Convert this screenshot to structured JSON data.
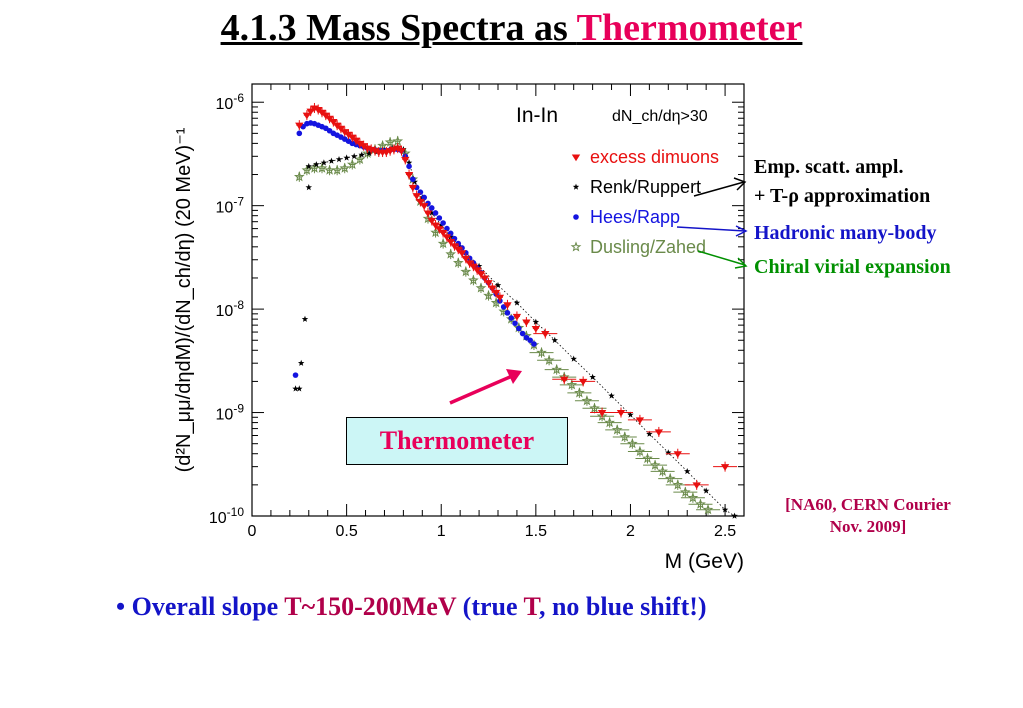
{
  "title": {
    "prefix": "4.1.3 Mass Spectra as ",
    "highlight": "Thermometer"
  },
  "colors": {
    "excess": "#e81010",
    "renk": "#000000",
    "hees": "#1414e0",
    "dusling": "#6a8a4a",
    "accent": "#e8005a",
    "blue_text": "#1414c8",
    "green_text": "#009000"
  },
  "annotations": {
    "emp_line1": "Emp. scatt. ampl.",
    "emp_line2": "+ T-ρ approximation",
    "hadronic": "Hadronic many-body",
    "chiral": "Chiral virial expansion",
    "ref_line1": "[NA60, CERN Courier",
    "ref_line2": "Nov. 2009]",
    "thermometer_box": "Thermometer"
  },
  "bullet": {
    "mark": "•",
    "p1": " Overall slope ",
    "p2": "T~150-200MeV",
    "p3": " (true ",
    "p4": "T",
    "p5": ", no blue shift!)"
  },
  "chart_data": {
    "type": "scatter",
    "title": "In-In",
    "condition": "dN_ch/dη>30",
    "xlabel": "M (GeV)",
    "ylabel": "(d²N_μμ/dηdM)/(dN_ch/dη) (20 MeV)⁻¹",
    "xlim": [
      0,
      2.6
    ],
    "ylim": [
      1e-10,
      1.5e-06
    ],
    "ylog": true,
    "xticks": [
      0,
      0.5,
      1,
      1.5,
      2,
      2.5
    ],
    "xtick_labels": [
      "0",
      "0.5",
      "1",
      "1.5",
      "2",
      "2.5"
    ],
    "ytick_labels": [
      {
        "value": 1e-10,
        "base": "10",
        "exp": "-10"
      },
      {
        "value": 1e-09,
        "base": "10",
        "exp": "-9"
      },
      {
        "value": 1e-08,
        "base": "10",
        "exp": "-8"
      },
      {
        "value": 1e-07,
        "base": "10",
        "exp": "-7"
      },
      {
        "value": 1e-06,
        "base": "10",
        "exp": "-6"
      }
    ],
    "legend_position": "top-right",
    "series": [
      {
        "name": "excess dimuons",
        "marker": "triangle-down",
        "color": "#e81010",
        "errors": true,
        "x": [
          0.25,
          0.29,
          0.31,
          0.33,
          0.35,
          0.37,
          0.39,
          0.41,
          0.43,
          0.45,
          0.47,
          0.49,
          0.51,
          0.53,
          0.55,
          0.57,
          0.59,
          0.61,
          0.63,
          0.65,
          0.67,
          0.69,
          0.71,
          0.73,
          0.75,
          0.77,
          0.79,
          0.81,
          0.83,
          0.85,
          0.87,
          0.89,
          0.91,
          0.93,
          0.95,
          0.97,
          0.99,
          1.01,
          1.03,
          1.05,
          1.07,
          1.09,
          1.11,
          1.13,
          1.15,
          1.17,
          1.19,
          1.21,
          1.23,
          1.25,
          1.27,
          1.29,
          1.31,
          1.35,
          1.4,
          1.45,
          1.5,
          1.55,
          1.65,
          1.75,
          1.85,
          1.95,
          2.05,
          2.15,
          2.25,
          2.35,
          2.5
        ],
        "y": [
          6e-07,
          7.5e-07,
          8.2e-07,
          8.8e-07,
          8.5e-07,
          8e-07,
          7.5e-07,
          7e-07,
          6.5e-07,
          6e-07,
          5.6e-07,
          5.2e-07,
          4.9e-07,
          4.6e-07,
          4.3e-07,
          4e-07,
          3.8e-07,
          3.6e-07,
          3.5e-07,
          3.4e-07,
          3.3e-07,
          3.3e-07,
          3.3e-07,
          3.4e-07,
          3.5e-07,
          3.6e-07,
          3.4e-07,
          2.8e-07,
          2e-07,
          1.5e-07,
          1.25e-07,
          1.1e-07,
          1e-07,
          8.5e-08,
          7.2e-08,
          6.5e-08,
          6e-08,
          5.5e-08,
          5e-08,
          4.5e-08,
          4.1e-08,
          3.8e-08,
          3.5e-08,
          3.1e-08,
          2.8e-08,
          2.6e-08,
          2.4e-08,
          2.2e-08,
          2e-08,
          1.8e-08,
          1.6e-08,
          1.45e-08,
          1.3e-08,
          1.1e-08,
          8.5e-09,
          7.5e-09,
          6.5e-09,
          5.8e-09,
          2.1e-09,
          2e-09,
          1e-09,
          1e-09,
          8.5e-10,
          6.5e-10,
          4e-10,
          2e-10,
          3e-10
        ]
      },
      {
        "name": "Renk/Ruppert",
        "marker": "star",
        "color": "#000000",
        "line": true,
        "x": [
          0.25,
          0.26,
          0.3,
          0.34,
          0.38,
          0.42,
          0.46,
          0.5,
          0.54,
          0.58,
          0.62,
          0.66,
          0.7,
          0.74,
          0.77,
          0.8,
          0.83,
          0.86,
          0.9,
          0.95,
          1.0,
          1.05,
          1.1,
          1.2,
          1.3,
          1.4,
          1.5,
          1.6,
          1.7,
          1.8,
          1.9,
          2.0,
          2.1,
          2.2,
          2.3,
          2.4,
          2.5,
          2.55
        ],
        "y": [
          1.7e-09,
          3e-09,
          2.4e-07,
          2.5e-07,
          2.6e-07,
          2.7e-07,
          2.8e-07,
          2.9e-07,
          3e-07,
          3.1e-07,
          3.2e-07,
          3.3e-07,
          3.4e-07,
          3.6e-07,
          3.7e-07,
          3.5e-07,
          2.6e-07,
          1.7e-07,
          1.2e-07,
          8.5e-08,
          6.5e-08,
          5e-08,
          4e-08,
          2.6e-08,
          1.7e-08,
          1.15e-08,
          7.5e-09,
          5e-09,
          3.3e-09,
          2.2e-09,
          1.45e-09,
          9.5e-10,
          6.2e-10,
          4.1e-10,
          2.7e-10,
          1.75e-10,
          1.15e-10,
          1e-10
        ],
        "extra_x": [
          0.23,
          0.28,
          0.3
        ],
        "extra_y": [
          1.7e-09,
          8e-09,
          1.5e-07
        ]
      },
      {
        "name": "Hees/Rapp",
        "marker": "circle",
        "color": "#1414e0",
        "x": [
          0.23,
          0.25,
          0.27,
          0.29,
          0.31,
          0.33,
          0.35,
          0.37,
          0.39,
          0.41,
          0.43,
          0.45,
          0.47,
          0.49,
          0.51,
          0.53,
          0.55,
          0.57,
          0.59,
          0.61,
          0.63,
          0.65,
          0.67,
          0.69,
          0.71,
          0.73,
          0.75,
          0.77,
          0.79,
          0.81,
          0.83,
          0.85,
          0.87,
          0.89,
          0.91,
          0.93,
          0.95,
          0.97,
          0.99,
          1.01,
          1.03,
          1.05,
          1.07,
          1.09,
          1.11,
          1.13,
          1.15,
          1.17,
          1.19,
          1.21,
          1.23,
          1.25,
          1.27,
          1.29,
          1.31,
          1.33,
          1.35,
          1.37,
          1.39,
          1.41,
          1.43,
          1.45,
          1.47,
          1.49
        ],
        "y": [
          2.3e-09,
          5e-07,
          5.8e-07,
          6.2e-07,
          6.3e-07,
          6.2e-07,
          6e-07,
          5.8e-07,
          5.6e-07,
          5.3e-07,
          5e-07,
          4.8e-07,
          4.6e-07,
          4.4e-07,
          4.2e-07,
          4e-07,
          3.9e-07,
          3.8e-07,
          3.7e-07,
          3.6e-07,
          3.5e-07,
          3.45e-07,
          3.4e-07,
          3.4e-07,
          3.4e-07,
          3.45e-07,
          3.5e-07,
          3.5e-07,
          3.4e-07,
          3e-07,
          2.4e-07,
          1.8e-07,
          1.5e-07,
          1.35e-07,
          1.2e-07,
          1.05e-07,
          9.5e-08,
          8.5e-08,
          7.6e-08,
          6.8e-08,
          6e-08,
          5.4e-08,
          4.8e-08,
          4.3e-08,
          3.9e-08,
          3.5e-08,
          3.1e-08,
          2.8e-08,
          2.5e-08,
          2.25e-08,
          2e-08,
          1.8e-08,
          1.6e-08,
          1.4e-08,
          1.2e-08,
          1.05e-08,
          9.2e-09,
          8.2e-09,
          7.3e-09,
          6.5e-09,
          5.8e-09,
          5.3e-09,
          5e-09,
          4.6e-09
        ]
      },
      {
        "name": "Dusling/Zahed",
        "marker": "open-star",
        "color": "#6a8a4a",
        "errors": true,
        "x": [
          0.25,
          0.29,
          0.33,
          0.37,
          0.41,
          0.45,
          0.49,
          0.53,
          0.57,
          0.61,
          0.65,
          0.69,
          0.73,
          0.77,
          0.81,
          0.85,
          0.89,
          0.93,
          0.97,
          1.01,
          1.05,
          1.09,
          1.13,
          1.17,
          1.21,
          1.25,
          1.29,
          1.33,
          1.37,
          1.41,
          1.45,
          1.49,
          1.53,
          1.57,
          1.61,
          1.65,
          1.69,
          1.73,
          1.77,
          1.81,
          1.85,
          1.89,
          1.93,
          1.97,
          2.01,
          2.05,
          2.09,
          2.13,
          2.17,
          2.21,
          2.25,
          2.29,
          2.33,
          2.37,
          2.41
        ],
        "y": [
          1.9e-07,
          2.2e-07,
          2.3e-07,
          2.3e-07,
          2.2e-07,
          2.2e-07,
          2.3e-07,
          2.5e-07,
          2.8e-07,
          3.2e-07,
          3.5e-07,
          3.8e-07,
          4.1e-07,
          4.2e-07,
          3.2e-07,
          1.8e-07,
          1.1e-07,
          7.5e-08,
          5.5e-08,
          4.3e-08,
          3.4e-08,
          2.8e-08,
          2.3e-08,
          1.9e-08,
          1.6e-08,
          1.35e-08,
          1.15e-08,
          9.5e-09,
          8e-09,
          6.6e-09,
          5.5e-09,
          4.5e-09,
          3.8e-09,
          3.2e-09,
          2.6e-09,
          2.2e-09,
          1.85e-09,
          1.55e-09,
          1.3e-09,
          1.1e-09,
          9.2e-10,
          8e-10,
          6.8e-10,
          5.8e-10,
          5e-10,
          4.2e-10,
          3.6e-10,
          3.1e-10,
          2.7e-10,
          2.3e-10,
          2e-10,
          1.7e-10,
          1.5e-10,
          1.3e-10,
          1.15e-10
        ]
      }
    ]
  }
}
